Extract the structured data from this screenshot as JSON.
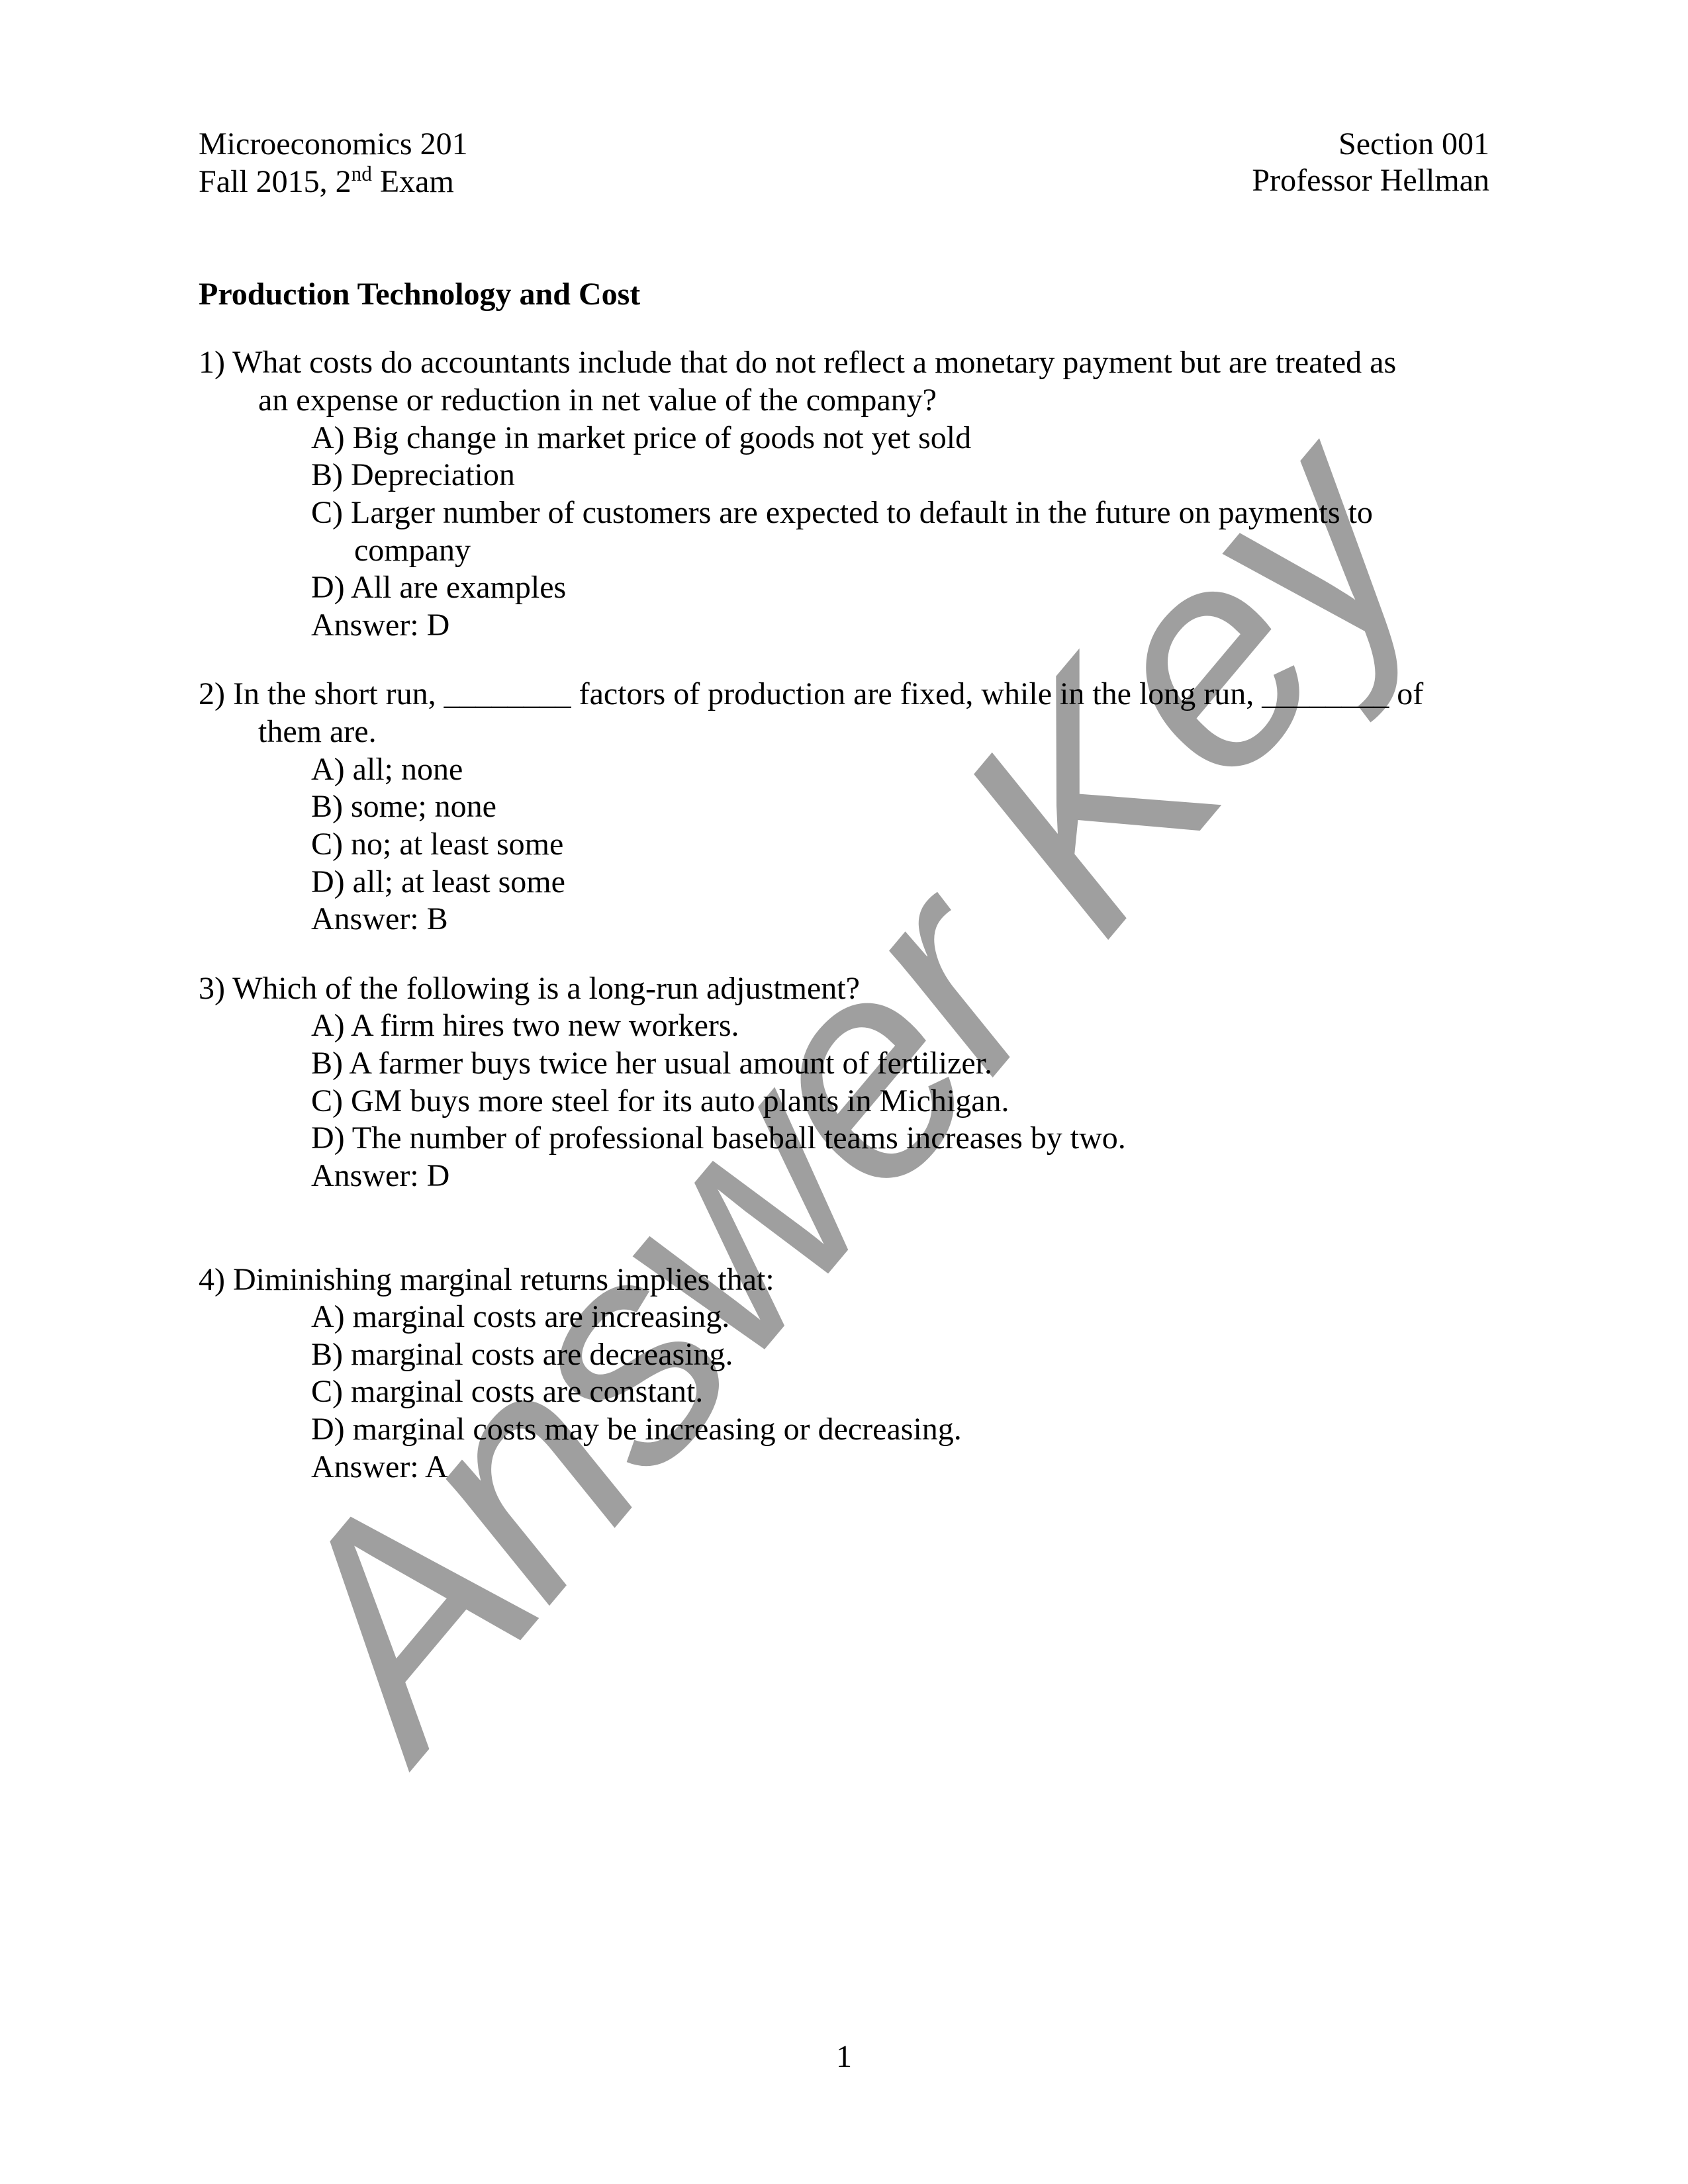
{
  "header": {
    "left_line1": "Microeconomics 201",
    "left_line2_pre": "Fall 2015, 2",
    "left_line2_sup": "nd",
    "left_line2_post": " Exam",
    "right_line1": "Section 001",
    "right_line2": "Professor Hellman"
  },
  "section_title": "Production Technology and Cost",
  "questions": [
    {
      "num": "1)",
      "stem_first": "  What costs do accountants include that do not reflect a monetary payment but are treated as",
      "stem_cont": [
        "an expense or reduction in net value of the company?"
      ],
      "choices": [
        {
          "t": "A) Big change in market price of goods not yet sold"
        },
        {
          "t": "B) Depreciation"
        },
        {
          "t": "C) Larger number of customers are expected to default in the future on payments to",
          "cont": [
            "company"
          ]
        },
        {
          "t": "D) All are examples"
        }
      ],
      "answer": "Answer: D"
    },
    {
      "num": "2)",
      "stem_first": " In the short run, ________ factors of production are fixed, while in the long run, ________ of",
      "stem_cont": [
        "them are."
      ],
      "choices": [
        {
          "t": "A) all; none"
        },
        {
          "t": "B) some; none"
        },
        {
          "t": "C) no; at least some"
        },
        {
          "t": "D) all; at least some"
        }
      ],
      "answer": "Answer:  B"
    },
    {
      "num": "3)",
      "stem_first": " Which of the following is a long-run adjustment?",
      "stem_cont": [],
      "choices": [
        {
          "t": "A) A firm hires two new workers."
        },
        {
          "t": "B) A farmer buys twice her usual amount of fertilizer."
        },
        {
          "t": "C) GM buys more steel for its auto plants in Michigan."
        },
        {
          "t": "D) The number of professional baseball teams increases by two."
        }
      ],
      "answer": "Answer:  D",
      "extra_gap": true
    },
    {
      "num": "4)",
      "stem_first": " Diminishing marginal returns implies that:",
      "stem_cont": [],
      "choices": [
        {
          "t": "A) marginal costs are increasing."
        },
        {
          "t": "B) marginal costs are decreasing."
        },
        {
          "t": "C) marginal costs are constant."
        },
        {
          "t": "D) marginal costs may be increasing or decreasing."
        }
      ],
      "answer": "Answer:  A"
    }
  ],
  "watermark": "Answer Key",
  "page_number": "1",
  "colors": {
    "text": "#000000",
    "background": "#ffffff",
    "watermark": "#808080"
  },
  "fonts": {
    "body_family": "Times New Roman",
    "body_size_pt": 12,
    "watermark_family": "Arial",
    "watermark_style": "italic"
  }
}
